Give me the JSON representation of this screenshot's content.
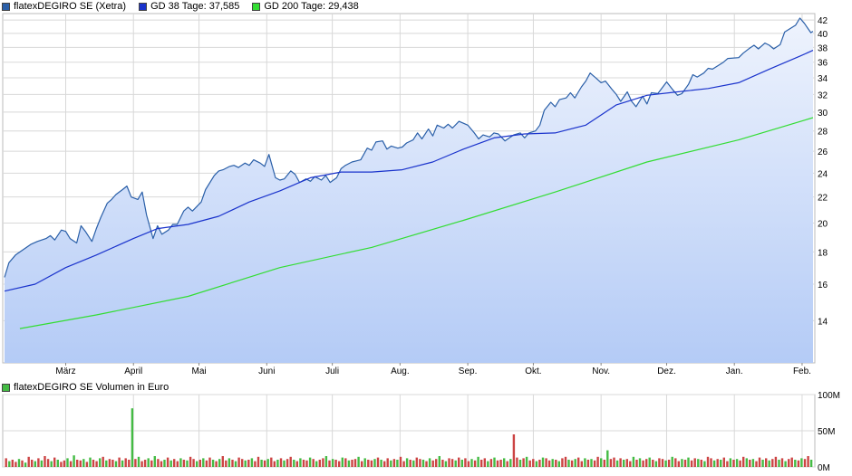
{
  "legend": {
    "price_label": "flatexDEGIRO SE (Xetra)",
    "gd38_label": "GD 38 Tage: 37,585",
    "gd200_label": "GD 200 Tage: 29,438",
    "volume_label": "flatexDEGIRO SE Volumen in Euro"
  },
  "colors": {
    "price_line": "#2a5fa8",
    "price_fill_top": "#eef3fd",
    "price_fill_bottom": "#b4cbf6",
    "gd38": "#1a33cc",
    "gd200": "#33dd33",
    "grid": "#d8d8d8",
    "vol_up": "#44bb44",
    "vol_down": "#cc4444",
    "legend_price": "#2a5fa8",
    "legend_gd38": "#1a33cc",
    "legend_gd200": "#33dd33",
    "legend_volume": "#44bb44"
  },
  "chart_data": [
    {
      "type": "line",
      "title": "",
      "xlabel": "",
      "ylabel": "",
      "y_scale": "log",
      "ylim": [
        12,
        43
      ],
      "yticks": [
        14,
        16,
        18,
        20,
        22,
        24,
        26,
        28,
        30,
        32,
        34,
        36,
        38,
        40,
        42
      ],
      "xticks": [
        "März",
        "April",
        "Mai",
        "Juni",
        "Juli",
        "Aug.",
        "Sep.",
        "Okt.",
        "Nov.",
        "Dez.",
        "Jan.",
        "Feb."
      ],
      "grid": true,
      "legend_position": "top-left",
      "series": [
        {
          "name": "flatexDEGIRO SE (Xetra)",
          "points": [
            [
              "02-01",
              16.4
            ],
            [
              "02-03",
              17.3
            ],
            [
              "02-06",
              17.8
            ],
            [
              "02-09",
              18.1
            ],
            [
              "02-13",
              18.5
            ],
            [
              "02-16",
              18.7
            ],
            [
              "02-20",
              18.9
            ],
            [
              "02-22",
              19.1
            ],
            [
              "02-24",
              18.8
            ],
            [
              "02-27",
              19.5
            ],
            [
              "03-01",
              19.4
            ],
            [
              "03-03",
              18.9
            ],
            [
              "03-06",
              18.6
            ],
            [
              "03-08",
              19.8
            ],
            [
              "03-10",
              19.4
            ],
            [
              "03-13",
              18.7
            ],
            [
              "03-15",
              19.6
            ],
            [
              "03-17",
              20.4
            ],
            [
              "03-20",
              21.5
            ],
            [
              "03-22",
              21.8
            ],
            [
              "03-24",
              22.2
            ],
            [
              "03-27",
              22.6
            ],
            [
              "03-29",
              22.9
            ],
            [
              "03-31",
              22.0
            ],
            [
              "04-03",
              21.8
            ],
            [
              "04-05",
              22.4
            ],
            [
              "04-07",
              20.6
            ],
            [
              "04-10",
              18.9
            ],
            [
              "04-12",
              19.8
            ],
            [
              "04-14",
              19.2
            ],
            [
              "04-17",
              19.5
            ],
            [
              "04-19",
              19.9
            ],
            [
              "04-21",
              19.9
            ],
            [
              "04-24",
              20.9
            ],
            [
              "04-26",
              21.2
            ],
            [
              "04-28",
              20.9
            ],
            [
              "05-02",
              21.6
            ],
            [
              "05-04",
              22.6
            ],
            [
              "05-08",
              23.8
            ],
            [
              "05-10",
              24.2
            ],
            [
              "05-12",
              24.3
            ],
            [
              "05-15",
              24.6
            ],
            [
              "05-17",
              24.7
            ],
            [
              "05-19",
              24.5
            ],
            [
              "05-22",
              24.9
            ],
            [
              "05-24",
              24.7
            ],
            [
              "05-26",
              25.2
            ],
            [
              "05-29",
              24.9
            ],
            [
              "05-31",
              24.6
            ],
            [
              "06-02",
              25.7
            ],
            [
              "06-05",
              23.6
            ],
            [
              "06-07",
              23.4
            ],
            [
              "06-09",
              23.5
            ],
            [
              "06-12",
              24.2
            ],
            [
              "06-14",
              23.9
            ],
            [
              "06-16",
              23.2
            ],
            [
              "06-19",
              23.5
            ],
            [
              "06-21",
              23.3
            ],
            [
              "06-23",
              23.7
            ],
            [
              "06-26",
              23.4
            ],
            [
              "06-28",
              23.8
            ],
            [
              "06-30",
              23.2
            ],
            [
              "07-03",
              23.6
            ],
            [
              "07-05",
              24.4
            ],
            [
              "07-07",
              24.7
            ],
            [
              "07-10",
              25.0
            ],
            [
              "07-12",
              25.1
            ],
            [
              "07-14",
              25.2
            ],
            [
              "07-17",
              26.3
            ],
            [
              "07-19",
              26.1
            ],
            [
              "07-21",
              26.9
            ],
            [
              "07-24",
              27.0
            ],
            [
              "07-26",
              26.2
            ],
            [
              "07-28",
              26.5
            ],
            [
              "07-31",
              26.3
            ],
            [
              "08-02",
              26.4
            ],
            [
              "08-04",
              26.8
            ],
            [
              "08-07",
              27.1
            ],
            [
              "08-09",
              27.8
            ],
            [
              "08-11",
              27.2
            ],
            [
              "08-14",
              28.2
            ],
            [
              "08-16",
              27.5
            ],
            [
              "08-18",
              28.6
            ],
            [
              "08-21",
              28.3
            ],
            [
              "08-23",
              28.7
            ],
            [
              "08-25",
              28.3
            ],
            [
              "08-28",
              29.0
            ],
            [
              "08-30",
              28.8
            ],
            [
              "09-01",
              28.6
            ],
            [
              "09-04",
              27.8
            ],
            [
              "09-06",
              27.2
            ],
            [
              "09-08",
              27.6
            ],
            [
              "09-11",
              27.4
            ],
            [
              "09-13",
              27.8
            ],
            [
              "09-15",
              27.7
            ],
            [
              "09-18",
              27.0
            ],
            [
              "09-20",
              27.3
            ],
            [
              "09-22",
              27.6
            ],
            [
              "09-25",
              27.8
            ],
            [
              "09-27",
              27.3
            ],
            [
              "09-29",
              27.8
            ],
            [
              "10-02",
              28.0
            ],
            [
              "10-04",
              28.6
            ],
            [
              "10-06",
              30.2
            ],
            [
              "10-09",
              31.1
            ],
            [
              "10-11",
              30.6
            ],
            [
              "10-13",
              31.4
            ],
            [
              "10-16",
              31.6
            ],
            [
              "10-18",
              32.2
            ],
            [
              "10-20",
              31.6
            ],
            [
              "10-23",
              32.9
            ],
            [
              "10-25",
              33.6
            ],
            [
              "10-27",
              34.6
            ],
            [
              "10-30",
              33.9
            ],
            [
              "11-01",
              33.4
            ],
            [
              "11-03",
              33.6
            ],
            [
              "11-06",
              32.6
            ],
            [
              "11-08",
              32.0
            ],
            [
              "11-10",
              31.2
            ],
            [
              "11-13",
              32.3
            ],
            [
              "11-15",
              31.2
            ],
            [
              "11-17",
              30.6
            ],
            [
              "11-20",
              31.8
            ],
            [
              "11-22",
              30.9
            ],
            [
              "11-24",
              32.2
            ],
            [
              "11-27",
              32.1
            ],
            [
              "11-29",
              32.8
            ],
            [
              "12-01",
              33.5
            ],
            [
              "12-04",
              32.5
            ],
            [
              "12-06",
              31.9
            ],
            [
              "12-08",
              32.1
            ],
            [
              "12-11",
              33.2
            ],
            [
              "12-13",
              34.4
            ],
            [
              "12-15",
              34.1
            ],
            [
              "12-18",
              34.6
            ],
            [
              "12-20",
              35.2
            ],
            [
              "12-22",
              35.1
            ],
            [
              "12-27",
              36.0
            ],
            [
              "12-29",
              36.5
            ],
            [
              "01-03",
              36.6
            ],
            [
              "01-05",
              37.2
            ],
            [
              "01-08",
              37.9
            ],
            [
              "01-10",
              38.3
            ],
            [
              "01-12",
              37.8
            ],
            [
              "01-15",
              38.6
            ],
            [
              "01-17",
              38.3
            ],
            [
              "01-19",
              37.8
            ],
            [
              "01-22",
              38.4
            ],
            [
              "01-24",
              40.2
            ],
            [
              "01-26",
              40.6
            ],
            [
              "01-29",
              41.2
            ],
            [
              "01-31",
              42.3
            ],
            [
              "02-02",
              41.5
            ],
            [
              "02-05",
              40.1
            ],
            [
              "02-06",
              40.3
            ]
          ]
        },
        {
          "name": "GD 38 Tage",
          "points": [
            [
              "02-01",
              15.6
            ],
            [
              "02-15",
              16.0
            ],
            [
              "03-01",
              17.0
            ],
            [
              "03-15",
              17.8
            ],
            [
              "04-01",
              18.9
            ],
            [
              "04-12",
              19.6
            ],
            [
              "04-26",
              19.9
            ],
            [
              "05-10",
              20.5
            ],
            [
              "05-24",
              21.6
            ],
            [
              "06-07",
              22.5
            ],
            [
              "06-21",
              23.6
            ],
            [
              "07-05",
              24.1
            ],
            [
              "07-19",
              24.1
            ],
            [
              "08-02",
              24.3
            ],
            [
              "08-16",
              25.0
            ],
            [
              "08-30",
              26.2
            ],
            [
              "09-13",
              27.3
            ],
            [
              "09-27",
              27.7
            ],
            [
              "10-11",
              27.8
            ],
            [
              "10-25",
              28.6
            ],
            [
              "11-08",
              30.8
            ],
            [
              "11-22",
              31.9
            ],
            [
              "12-06",
              32.3
            ],
            [
              "12-20",
              32.7
            ],
            [
              "01-03",
              33.4
            ],
            [
              "01-17",
              35.1
            ],
            [
              "01-31",
              36.8
            ],
            [
              "02-06",
              37.6
            ]
          ]
        },
        {
          "name": "GD 200 Tage",
          "points": [
            [
              "02-08",
              13.6
            ],
            [
              "03-15",
              14.3
            ],
            [
              "04-26",
              15.3
            ],
            [
              "06-07",
              17.0
            ],
            [
              "07-19",
              18.3
            ],
            [
              "08-30",
              20.2
            ],
            [
              "10-11",
              22.4
            ],
            [
              "11-22",
              25.0
            ],
            [
              "01-03",
              27.1
            ],
            [
              "02-06",
              29.4
            ]
          ]
        }
      ]
    },
    {
      "type": "bar",
      "title": "",
      "xlabel": "",
      "ylabel": "",
      "ylim": [
        0,
        100
      ],
      "yticks": [
        "0M",
        "50M",
        "100M"
      ],
      "grid": true,
      "legend_position": "top-left",
      "series": [
        {
          "name": "flatexDEGIRO SE Volumen in Euro",
          "unit": "M",
          "spikes": [
            [
              "03-31",
              81
            ],
            [
              "09-21",
              45
            ],
            [
              "11-03",
              23
            ]
          ],
          "values": [
            12,
            8,
            10,
            7,
            11,
            9,
            6,
            14,
            10,
            8,
            12,
            9,
            15,
            11,
            8,
            13,
            10,
            7,
            9,
            12,
            8,
            16,
            10,
            9,
            11,
            7,
            13,
            10,
            8,
            12,
            14,
            9,
            11,
            10,
            8,
            13,
            9,
            12,
            10,
            7,
            11,
            14,
            8,
            10,
            12,
            9,
            15,
            11,
            8,
            10,
            13,
            9,
            11,
            8,
            12,
            10,
            9,
            14,
            11,
            8,
            10,
            12,
            9,
            13,
            10,
            8,
            11,
            15,
            9,
            12,
            10,
            8,
            13,
            11,
            9,
            10,
            12,
            8,
            14,
            10,
            9,
            11,
            13,
            8,
            10,
            12,
            9,
            11,
            14,
            10,
            8,
            12,
            10,
            9,
            13,
            11,
            8,
            10,
            12,
            15,
            9,
            11,
            10,
            8,
            13,
            12,
            9,
            10,
            11,
            14,
            8,
            12,
            10,
            9,
            11,
            13,
            10,
            8,
            12,
            9,
            11,
            10,
            14,
            8,
            12,
            10,
            9,
            13,
            11,
            10,
            8,
            12,
            9,
            11,
            15,
            10,
            8,
            12,
            11,
            9,
            13,
            10,
            12,
            8,
            11,
            9,
            14,
            10,
            12,
            8,
            11,
            13,
            9,
            10,
            12,
            8,
            11,
            9,
            13,
            10,
            12,
            14,
            9,
            11,
            8,
            10,
            13,
            12,
            9,
            11,
            10,
            8,
            12,
            14,
            10,
            9,
            11,
            13,
            8,
            12,
            10,
            11,
            9,
            14,
            12,
            10,
            8,
            11,
            13,
            9,
            12,
            10,
            11,
            8,
            14,
            10,
            12,
            9,
            11,
            13,
            10,
            8,
            12,
            11,
            9,
            10,
            14,
            12,
            8,
            11,
            10,
            13,
            9,
            12,
            11,
            10,
            8,
            14,
            12,
            9,
            11,
            10,
            13,
            8,
            12,
            10,
            11,
            9,
            14,
            12,
            10,
            11,
            8,
            13,
            10,
            12,
            9,
            11,
            14,
            10,
            12,
            8,
            11,
            13,
            10,
            9,
            12,
            11,
            15,
            10
          ]
        }
      ]
    }
  ]
}
